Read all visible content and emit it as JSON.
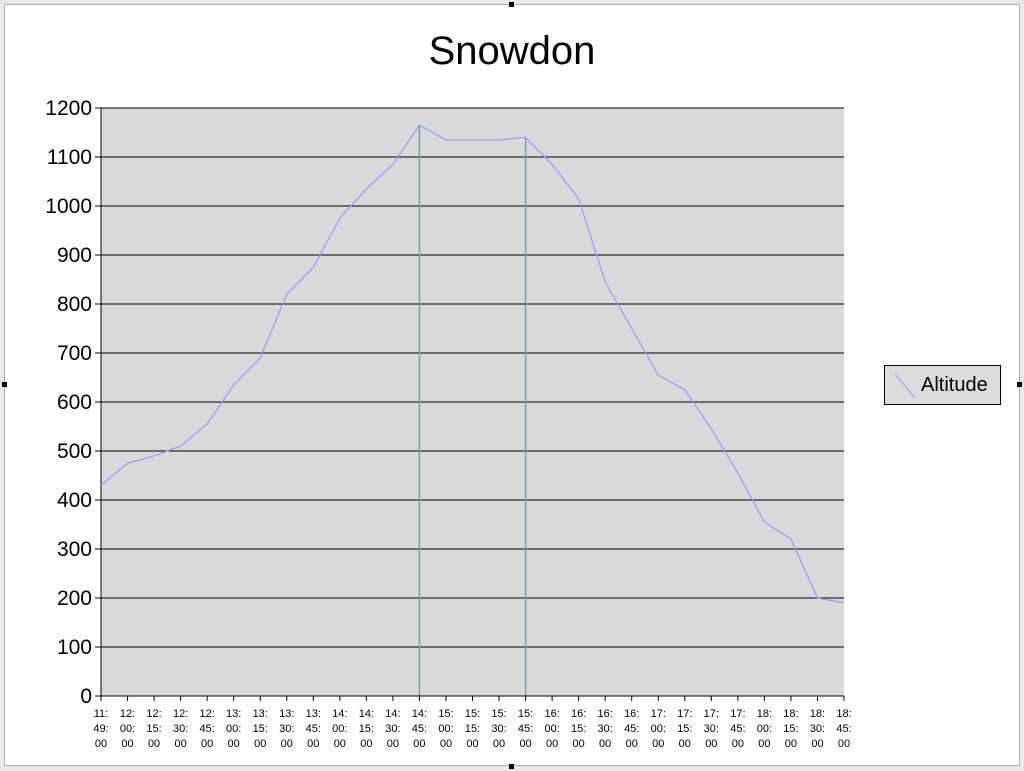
{
  "colors": {
    "plot_background": "#d9d9d9",
    "gridline": "#000000",
    "series_line": "#9999ff",
    "marker_line": "#6aa7a7",
    "frame": "#ffffff"
  },
  "chart_data": {
    "type": "line",
    "title": "Snowdon",
    "xlabel": "",
    "ylabel": "",
    "ylim": [
      0,
      1200
    ],
    "yticks": [
      0,
      100,
      200,
      300,
      400,
      500,
      600,
      700,
      800,
      900,
      1000,
      1100,
      1200
    ],
    "grid": "horizontal",
    "legend_position": "right",
    "x_tick_labels": [
      [
        "11:",
        "49:",
        "00"
      ],
      [
        "12:",
        "00:",
        "00"
      ],
      [
        "12:",
        "15:",
        "00"
      ],
      [
        "12:",
        "30:",
        "00"
      ],
      [
        "12:",
        "45:",
        "00"
      ],
      [
        "13:",
        "00:",
        "00"
      ],
      [
        "13:",
        "15:",
        "00"
      ],
      [
        "13:",
        "30:",
        "00"
      ],
      [
        "13:",
        "45:",
        "00"
      ],
      [
        "14:",
        "00:",
        "00"
      ],
      [
        "14:",
        "15:",
        "00"
      ],
      [
        "14:",
        "30:",
        "00"
      ],
      [
        "14:",
        "45:",
        "00"
      ],
      [
        "15:",
        "00:",
        "00"
      ],
      [
        "15:",
        "15:",
        "00"
      ],
      [
        "15:",
        "30:",
        "00"
      ],
      [
        "15:",
        "45:",
        "00"
      ],
      [
        "16:",
        "00:",
        "00"
      ],
      [
        "16:",
        "15:",
        "00"
      ],
      [
        "16:",
        "30:",
        "00"
      ],
      [
        "16:",
        "45:",
        "00"
      ],
      [
        "17:",
        "00:",
        "00"
      ],
      [
        "17:",
        "15:",
        "00"
      ],
      [
        "17:",
        "30:",
        "00"
      ],
      [
        "17:",
        "45:",
        "00"
      ],
      [
        "18:",
        "00:",
        "00"
      ],
      [
        "18:",
        "15:",
        "00"
      ],
      [
        "18:",
        "30:",
        "00"
      ],
      [
        "18:",
        "45:",
        "00"
      ]
    ],
    "vertical_markers": [
      "14:45:00",
      "15:45:00"
    ],
    "series": [
      {
        "name": "Altitude",
        "x": [
          "11:49:00",
          "12:00:00",
          "12:15:00",
          "12:30:00",
          "12:45:00",
          "13:00:00",
          "13:15:00",
          "13:30:00",
          "13:45:00",
          "14:00:00",
          "14:15:00",
          "14:30:00",
          "14:45:00",
          "15:00:00",
          "15:15:00",
          "15:30:00",
          "15:45:00",
          "16:00:00",
          "16:15:00",
          "16:30:00",
          "16:45:00",
          "17:00:00",
          "17:15:00",
          "17:30:00",
          "17:45:00",
          "18:00:00",
          "18:15:00",
          "18:30:00",
          "18:45:00"
        ],
        "values": [
          430,
          475,
          490,
          510,
          555,
          635,
          690,
          820,
          875,
          975,
          1035,
          1085,
          1165,
          1135,
          1135,
          1135,
          1140,
          1085,
          1015,
          845,
          750,
          655,
          625,
          545,
          455,
          355,
          320,
          200,
          190
        ]
      }
    ]
  }
}
